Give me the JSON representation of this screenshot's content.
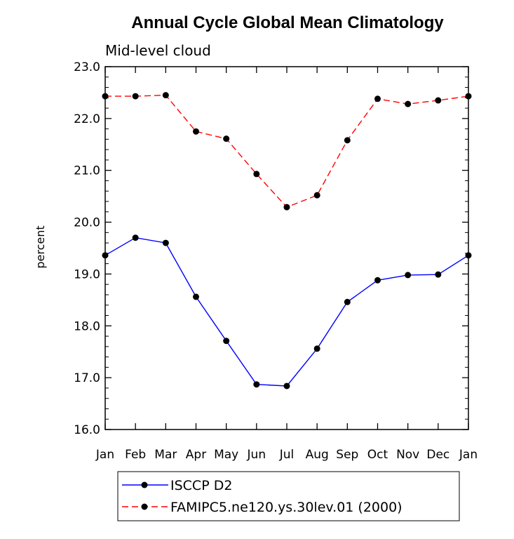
{
  "chart_data": {
    "type": "line",
    "title": "Annual Cycle Global Mean Climatology",
    "subtitle": "Mid-level cloud",
    "xlabel": "",
    "ylabel": "percent",
    "categories": [
      "Jan",
      "Feb",
      "Mar",
      "Apr",
      "May",
      "Jun",
      "Jul",
      "Aug",
      "Sep",
      "Oct",
      "Nov",
      "Dec",
      "Jan"
    ],
    "ylim": [
      16.0,
      23.0
    ],
    "yticks": [
      "16.0",
      "17.0",
      "18.0",
      "19.0",
      "20.0",
      "21.0",
      "22.0",
      "23.0"
    ],
    "grid": false,
    "legend_position": "bottom",
    "series": [
      {
        "name": "ISCCP D2",
        "color": "#0000ff",
        "dash": "solid",
        "marker": "filled-circle",
        "values": [
          19.36,
          19.7,
          19.6,
          18.56,
          17.71,
          16.87,
          16.84,
          17.56,
          18.46,
          18.88,
          18.98,
          18.99,
          19.36
        ]
      },
      {
        "name": "FAMIPC5.ne120.ys.30lev.01 (2000)",
        "color": "#ff0000",
        "dash": "dashed",
        "marker": "filled-circle",
        "values": [
          22.43,
          22.43,
          22.45,
          21.75,
          21.61,
          20.93,
          20.29,
          20.52,
          21.58,
          22.38,
          22.28,
          22.35,
          22.43
        ]
      }
    ]
  }
}
